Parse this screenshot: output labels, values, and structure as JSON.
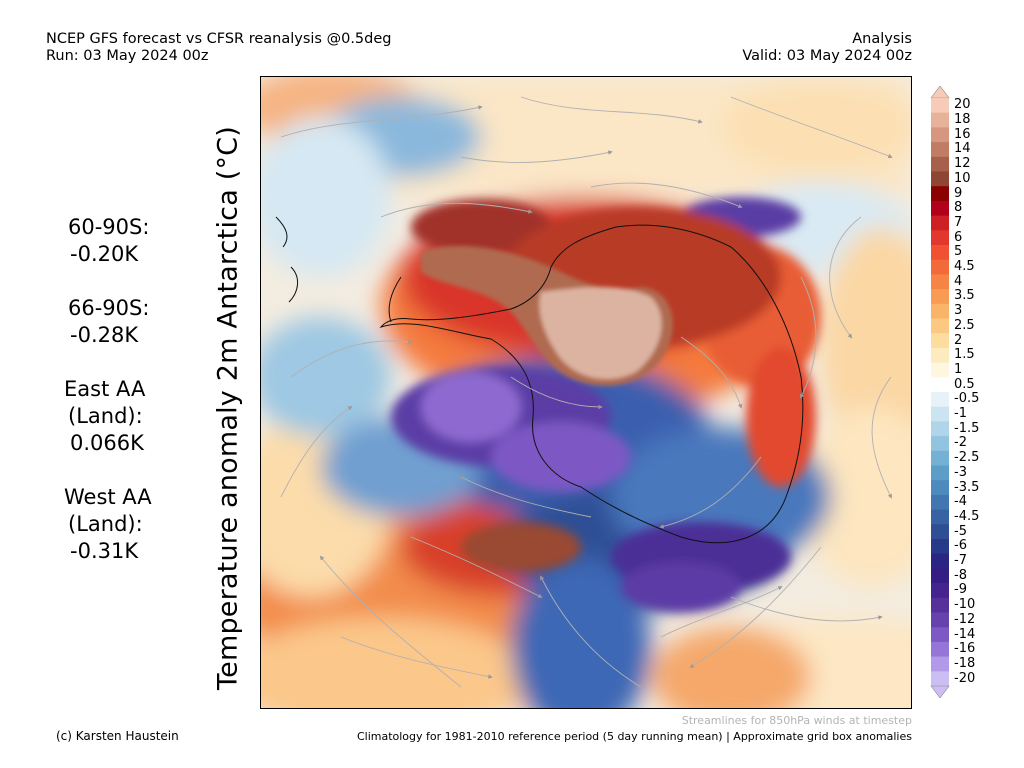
{
  "header": {
    "title": "NCEP GFS forecast vs CFSR reanalysis @0.5deg",
    "run": "Run: 03 May 2024 00z",
    "mode": "Analysis",
    "valid": "Valid: 03 May 2024 00z"
  },
  "map_title": "Temperature anomaly 2m Antarctica (°C)",
  "stats": [
    {
      "label": "60-90S:",
      "value": "-0.20K"
    },
    {
      "label": "66-90S:",
      "value": "-0.28K"
    },
    {
      "label": "East AA",
      "label2": "(Land):",
      "value": "0.066K"
    },
    {
      "label": "West AA",
      "label2": "(Land):",
      "value": "-0.31K"
    }
  ],
  "colorbar": {
    "levels": [
      "20",
      "18",
      "16",
      "14",
      "12",
      "10",
      "9",
      "8",
      "7",
      "6",
      "5",
      "4.5",
      "4",
      "3.5",
      "3",
      "2.5",
      "2",
      "1.5",
      "1",
      "0.5",
      "-0.5",
      "-1",
      "-1.5",
      "-2",
      "-2.5",
      "-3",
      "-3.5",
      "-4",
      "-4.5",
      "-5",
      "-6",
      "-7",
      "-8",
      "-9",
      "-10",
      "-12",
      "-14",
      "-16",
      "-18",
      "-20"
    ],
    "colors": [
      "#f6cbb8",
      "#e7b19a",
      "#d5977f",
      "#c07c64",
      "#a7604a",
      "#8e4533",
      "#8b0000",
      "#b0001a",
      "#cd1f24",
      "#e2372c",
      "#ef5132",
      "#f36a3a",
      "#f68445",
      "#f89c54",
      "#f9b469",
      "#fbc982",
      "#fcdc9f",
      "#fdebc0",
      "#fff6df",
      "#ffffff",
      "#e6f1f8",
      "#cbe4f1",
      "#b0d5e9",
      "#92c4e0",
      "#74b1d5",
      "#5d9ec9",
      "#4d8abd",
      "#4276b0",
      "#3863a3",
      "#2f4f95",
      "#29398a",
      "#2a2582",
      "#341d83",
      "#44258f",
      "#553199",
      "#6642ad",
      "#7c59c4",
      "#9575d8",
      "#b19ae7",
      "#ccbdf2"
    ]
  },
  "footer": {
    "credit": "(c) Karsten Haustein",
    "streamlines": "Streamlines for 850hPa winds at timestep",
    "climatology": "Climatology for 1981-2010 reference period (5 day running mean) | Approximate grid box anomalies"
  }
}
